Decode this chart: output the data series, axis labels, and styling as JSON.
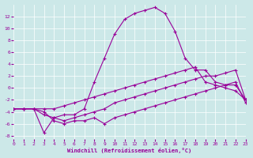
{
  "xlabel": "Windchill (Refroidissement éolien,°C)",
  "bg_color": "#cce8e8",
  "line_color": "#990099",
  "xlim": [
    0,
    23
  ],
  "ylim": [
    -8.5,
    14
  ],
  "yticks": [
    -8,
    -6,
    -4,
    -2,
    0,
    2,
    4,
    6,
    8,
    10,
    12
  ],
  "xticks": [
    0,
    1,
    2,
    3,
    4,
    5,
    6,
    7,
    8,
    9,
    10,
    11,
    12,
    13,
    14,
    15,
    16,
    17,
    18,
    19,
    20,
    21,
    22,
    23
  ],
  "line1_x": [
    0,
    1,
    2,
    3,
    4,
    5,
    6,
    7,
    8,
    9,
    10,
    11,
    12,
    13,
    14,
    15,
    16,
    17,
    18,
    19,
    20,
    21,
    22,
    23
  ],
  "line1_y": [
    -3.5,
    -3.5,
    -3.5,
    -4.5,
    -5.0,
    -5.5,
    -5.0,
    -4.5,
    -4.0,
    -3.5,
    -2.5,
    -2.0,
    -1.5,
    -1.0,
    -0.5,
    0.0,
    0.5,
    1.0,
    1.5,
    2.0,
    2.0,
    2.5,
    3.0,
    -2.0
  ],
  "line2_x": [
    0,
    1,
    2,
    3,
    4,
    5,
    6,
    7,
    8,
    9,
    10,
    11,
    12,
    13,
    14,
    15,
    16,
    17,
    18,
    19,
    20,
    21,
    22,
    23
  ],
  "line2_y": [
    -3.5,
    -3.5,
    -3.5,
    -4.0,
    -5.5,
    -6.0,
    -5.5,
    -5.5,
    -5.0,
    -6.0,
    -5.0,
    -4.5,
    -4.0,
    -3.5,
    -3.0,
    -2.5,
    -2.0,
    -1.5,
    -1.0,
    -0.5,
    0.0,
    0.5,
    1.0,
    -2.5
  ],
  "line3_x": [
    0,
    1,
    2,
    3,
    4,
    5,
    6,
    7,
    8,
    9,
    10,
    11,
    12,
    13,
    14,
    15,
    16,
    17,
    18,
    19,
    20,
    21,
    22,
    23
  ],
  "line3_y": [
    -3.5,
    -3.5,
    -3.5,
    -7.5,
    -5.0,
    -4.5,
    -4.5,
    -3.5,
    1.0,
    5.0,
    9.0,
    11.5,
    12.5,
    13.0,
    13.5,
    12.5,
    9.5,
    5.0,
    3.0,
    3.0,
    1.0,
    0.5,
    0.5,
    -2.0
  ],
  "line4_x": [
    0,
    1,
    2,
    3,
    4,
    5,
    6,
    7,
    8,
    9,
    10,
    11,
    12,
    13,
    14,
    15,
    16,
    17,
    18,
    19,
    20,
    21,
    22,
    23
  ],
  "line4_y": [
    -3.5,
    -3.5,
    -3.5,
    -3.5,
    -3.5,
    -3.0,
    -2.5,
    -2.0,
    -1.5,
    -1.0,
    -0.5,
    0.0,
    0.5,
    1.0,
    1.5,
    2.0,
    2.5,
    3.0,
    3.5,
    1.0,
    0.5,
    0.0,
    -0.5,
    -2.0
  ]
}
